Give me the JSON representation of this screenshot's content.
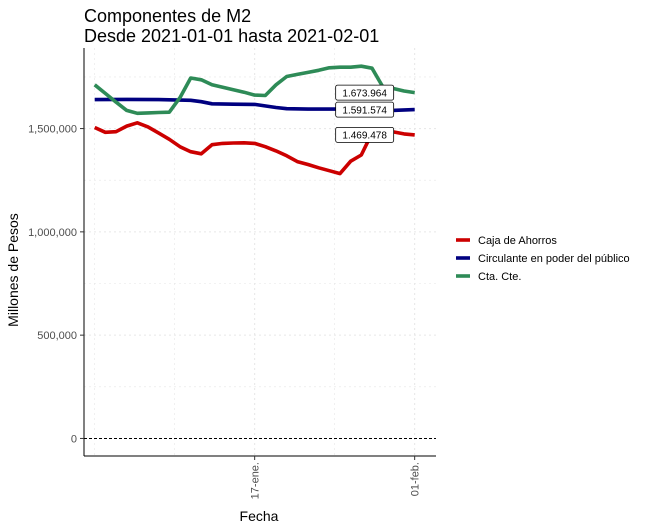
{
  "chart_data": {
    "type": "line",
    "title": "Componentes de M2",
    "subtitle": "Desde 2021-01-01 hasta 2021-02-01",
    "xlabel": "Fecha",
    "ylabel": "Millones de Pesos",
    "x_ticks": [
      {
        "date": "2021-01-17",
        "label": "17-ene."
      },
      {
        "date": "2021-02-01",
        "label": "01-feb."
      }
    ],
    "y_ticks": [
      {
        "value": 0,
        "label": "0"
      },
      {
        "value": 500000,
        "label": "500,000"
      },
      {
        "value": 1000000,
        "label": "1,000,000"
      },
      {
        "value": 1500000,
        "label": "1,500,000"
      }
    ],
    "xlim": [
      "2021-01-01",
      "2021-02-03"
    ],
    "ylim": [
      -85000,
      1890000
    ],
    "grid": true,
    "reference_line": 0,
    "legend_position": "right",
    "series": [
      {
        "name": "Caja de Ahorros",
        "color": "#cc0000",
        "points": [
          [
            "2021-01-02",
            1505000
          ],
          [
            "2021-01-03",
            1482000
          ],
          [
            "2021-01-04",
            1485000
          ],
          [
            "2021-01-05",
            1512000
          ],
          [
            "2021-01-06",
            1528000
          ],
          [
            "2021-01-07",
            1508000
          ],
          [
            "2021-01-08",
            1478000
          ],
          [
            "2021-01-09",
            1448000
          ],
          [
            "2021-01-10",
            1412000
          ],
          [
            "2021-01-11",
            1388000
          ],
          [
            "2021-01-12",
            1378000
          ],
          [
            "2021-01-13",
            1422000
          ],
          [
            "2021-01-14",
            1428000
          ],
          [
            "2021-01-15",
            1430000
          ],
          [
            "2021-01-16",
            1431000
          ],
          [
            "2021-01-17",
            1428000
          ],
          [
            "2021-01-18",
            1412000
          ],
          [
            "2021-01-19",
            1392000
          ],
          [
            "2021-01-20",
            1368000
          ],
          [
            "2021-01-21",
            1340000
          ],
          [
            "2021-01-22",
            1326000
          ],
          [
            "2021-01-23",
            1310000
          ],
          [
            "2021-01-24",
            1296000
          ],
          [
            "2021-01-25",
            1282000
          ],
          [
            "2021-01-26",
            1342000
          ],
          [
            "2021-01-27",
            1372000
          ],
          [
            "2021-01-28",
            1478000
          ],
          [
            "2021-01-29",
            1492000
          ],
          [
            "2021-01-30",
            1484000
          ],
          [
            "2021-01-31",
            1474000
          ],
          [
            "2021-02-01",
            1469478
          ]
        ],
        "last_label": "1.469.478"
      },
      {
        "name": "Circulante en poder del público",
        "color": "#000080",
        "points": [
          [
            "2021-01-02",
            1640000
          ],
          [
            "2021-01-05",
            1641000
          ],
          [
            "2021-01-08",
            1640000
          ],
          [
            "2021-01-11",
            1637000
          ],
          [
            "2021-01-12",
            1630000
          ],
          [
            "2021-01-13",
            1620000
          ],
          [
            "2021-01-15",
            1618000
          ],
          [
            "2021-01-17",
            1617000
          ],
          [
            "2021-01-19",
            1602000
          ],
          [
            "2021-01-20",
            1596000
          ],
          [
            "2021-01-22",
            1594000
          ],
          [
            "2021-01-25",
            1594000
          ],
          [
            "2021-01-27",
            1587000
          ],
          [
            "2021-01-29",
            1586000
          ],
          [
            "2021-02-01",
            1591574
          ]
        ],
        "last_label": "1.591.574"
      },
      {
        "name": "Cta. Cte.",
        "color": "#2e8b57",
        "points": [
          [
            "2021-01-02",
            1712000
          ],
          [
            "2021-01-03",
            1670000
          ],
          [
            "2021-01-04",
            1628000
          ],
          [
            "2021-01-05",
            1588000
          ],
          [
            "2021-01-06",
            1574000
          ],
          [
            "2021-01-07",
            1576000
          ],
          [
            "2021-01-08",
            1578000
          ],
          [
            "2021-01-09",
            1579000
          ],
          [
            "2021-01-10",
            1650000
          ],
          [
            "2021-01-11",
            1745000
          ],
          [
            "2021-01-12",
            1736000
          ],
          [
            "2021-01-13",
            1712000
          ],
          [
            "2021-01-14",
            1700000
          ],
          [
            "2021-01-15",
            1688000
          ],
          [
            "2021-01-16",
            1676000
          ],
          [
            "2021-01-17",
            1662000
          ],
          [
            "2021-01-18",
            1660000
          ],
          [
            "2021-01-19",
            1712000
          ],
          [
            "2021-01-20",
            1752000
          ],
          [
            "2021-01-21",
            1762000
          ],
          [
            "2021-01-22",
            1772000
          ],
          [
            "2021-01-23",
            1782000
          ],
          [
            "2021-01-24",
            1794000
          ],
          [
            "2021-01-25",
            1797000
          ],
          [
            "2021-01-26",
            1797000
          ],
          [
            "2021-01-27",
            1802000
          ],
          [
            "2021-01-28",
            1792000
          ],
          [
            "2021-01-29",
            1703000
          ],
          [
            "2021-01-30",
            1694000
          ],
          [
            "2021-01-31",
            1682000
          ],
          [
            "2021-02-01",
            1673964
          ]
        ],
        "last_label": "1.673.964"
      }
    ]
  }
}
